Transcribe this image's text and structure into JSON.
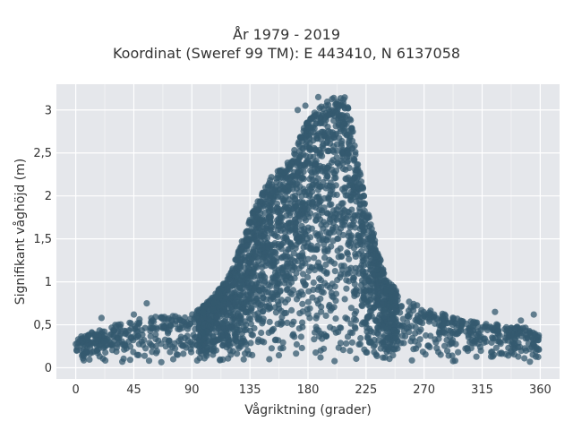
{
  "chart_data": {
    "type": "scatter",
    "title_lines": [
      "År 1979 - 2019",
      "Koordinat (Sweref 99 TM): E 443410, N 6137058"
    ],
    "xlabel": "Vågriktning (grader)",
    "ylabel": "Signifikant våghöjd (m)",
    "xlim": [
      -15,
      375
    ],
    "ylim": [
      -0.13,
      3.3
    ],
    "xticks": [
      0,
      45,
      90,
      135,
      180,
      225,
      270,
      315,
      360
    ],
    "yticks": [
      0,
      0.5,
      1,
      1.5,
      2,
      2.5,
      3
    ],
    "ytick_labels": [
      "0",
      "0,5",
      "1",
      "1,5",
      "2",
      "2,5",
      "3"
    ],
    "grid": true,
    "marker_color": "#34596f",
    "plot_background": "#e5e7eb",
    "envelope": {
      "direction": [
        0,
        30,
        60,
        90,
        105,
        120,
        135,
        150,
        165,
        180,
        195,
        210,
        225,
        240,
        255,
        270,
        300,
        330,
        360
      ],
      "max_height": [
        0.35,
        0.5,
        0.6,
        0.62,
        0.8,
        1.1,
        1.75,
        2.2,
        2.4,
        2.9,
        3.12,
        3.15,
        1.9,
        1.05,
        0.8,
        0.7,
        0.55,
        0.5,
        0.45
      ]
    },
    "outliers": [
      {
        "x": 20,
        "y": 0.58
      },
      {
        "x": 55,
        "y": 0.75
      },
      {
        "x": 45,
        "y": 0.62
      },
      {
        "x": 75,
        "y": 0.55
      },
      {
        "x": 160,
        "y": 2.05
      },
      {
        "x": 172,
        "y": 3.0
      },
      {
        "x": 178,
        "y": 3.05
      },
      {
        "x": 188,
        "y": 3.15
      },
      {
        "x": 200,
        "y": 3.14
      },
      {
        "x": 325,
        "y": 0.65
      },
      {
        "x": 355,
        "y": 0.62
      },
      {
        "x": 345,
        "y": 0.55
      }
    ]
  }
}
